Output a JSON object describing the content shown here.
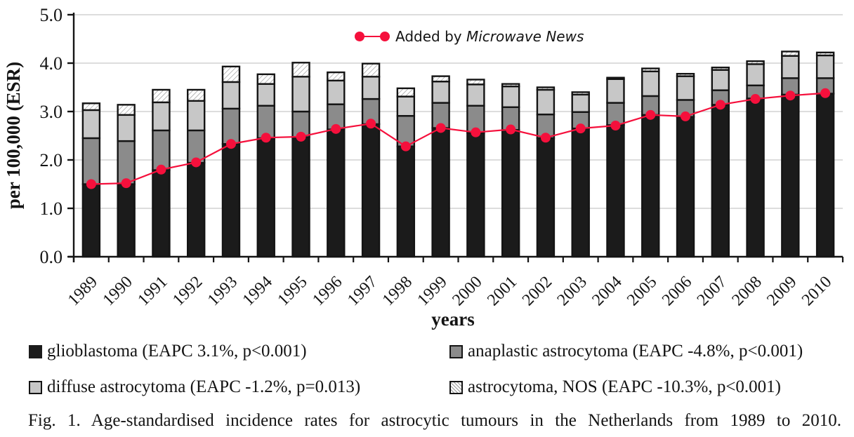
{
  "colors": {
    "accent_red": "#f5103c",
    "glioblastoma": "#1b1b1b",
    "anaplastic": "#8b8b8b",
    "diffuse": "#c7c7c7",
    "hatch_line": "#9a9a9a",
    "outline": "#141414",
    "gridline": "#d2d2d2"
  },
  "annotation": {
    "prefix": "Added by ",
    "source": "Microwave News"
  },
  "chart_data": {
    "type": "bar",
    "stacked": true,
    "xlabel": "years",
    "ylabel": "per 100,000 (ESR)",
    "ylim": [
      0,
      5
    ],
    "grid": "horizontal",
    "ytick_labels": [
      "0.0",
      "1.0",
      "2.0",
      "3.0",
      "4.0",
      "5.0"
    ],
    "categories": [
      "1989",
      "1990",
      "1991",
      "1992",
      "1993",
      "1994",
      "1995",
      "1996",
      "1997",
      "1998",
      "1999",
      "2000",
      "2001",
      "2002",
      "2003",
      "2004",
      "2005",
      "2006",
      "2007",
      "2008",
      "2009",
      "2010"
    ],
    "series": [
      {
        "key": "glioblastoma",
        "name": "glioblastoma (EAPC 3.1%, p<0.001)",
        "color": "#1b1b1b",
        "values": [
          1.5,
          1.5,
          1.79,
          1.94,
          2.33,
          2.45,
          2.47,
          2.63,
          2.74,
          2.28,
          2.66,
          2.56,
          2.62,
          2.45,
          2.65,
          2.72,
          2.93,
          2.89,
          3.14,
          3.27,
          3.35,
          3.37
        ]
      },
      {
        "key": "anaplastic-astrocytoma",
        "name": "anaplastic astrocytoma (EAPC -4.8%, p<0.001)",
        "color": "#8b8b8b",
        "values": [
          0.95,
          0.89,
          0.82,
          0.67,
          0.73,
          0.67,
          0.53,
          0.52,
          0.52,
          0.63,
          0.52,
          0.56,
          0.47,
          0.49,
          0.34,
          0.46,
          0.39,
          0.35,
          0.3,
          0.27,
          0.34,
          0.32
        ]
      },
      {
        "key": "diffuse-astrocytoma",
        "name": "diffuse astrocytoma (EAPC -1.2%, p=0.013)",
        "color": "#c7c7c7",
        "values": [
          0.58,
          0.54,
          0.58,
          0.61,
          0.55,
          0.45,
          0.72,
          0.49,
          0.46,
          0.4,
          0.44,
          0.44,
          0.43,
          0.51,
          0.36,
          0.49,
          0.51,
          0.49,
          0.42,
          0.44,
          0.46,
          0.47
        ]
      },
      {
        "key": "astrocytoma-nos",
        "name": "astrocytoma, NOS (EAPC -10.3%, p<0.001)",
        "pattern": "diagonal-hatch",
        "color": "#ffffff",
        "values": [
          0.14,
          0.21,
          0.26,
          0.23,
          0.32,
          0.2,
          0.29,
          0.17,
          0.27,
          0.17,
          0.11,
          0.1,
          0.05,
          0.05,
          0.05,
          0.03,
          0.06,
          0.05,
          0.05,
          0.06,
          0.09,
          0.06
        ]
      }
    ],
    "line_series": {
      "key": "glioblastoma-trend",
      "name": "Added by Microwave News",
      "color": "#f5103c",
      "values": [
        1.5,
        1.52,
        1.8,
        1.95,
        2.33,
        2.46,
        2.48,
        2.64,
        2.75,
        2.28,
        2.66,
        2.57,
        2.63,
        2.46,
        2.65,
        2.71,
        2.93,
        2.9,
        3.14,
        3.26,
        3.33,
        3.38
      ]
    },
    "legend_position": "bottom"
  },
  "legend": {
    "items": [
      {
        "label": "glioblastoma (EAPC 3.1%, p<0.001)",
        "swatch": "black"
      },
      {
        "label": "anaplastic astrocytoma (EAPC -4.8%, p<0.001)",
        "swatch": "darkgray"
      },
      {
        "label": "diffuse astrocytoma (EAPC -1.2%, p=0.013)",
        "swatch": "lightgray"
      },
      {
        "label": "astrocytoma, NOS (EAPC -10.3%, p<0.001)",
        "swatch": "hatch"
      }
    ]
  },
  "caption": "Fig. 1. Age-standardised incidence rates for astrocytic tumours in the Netherlands from 1989 to 2010."
}
